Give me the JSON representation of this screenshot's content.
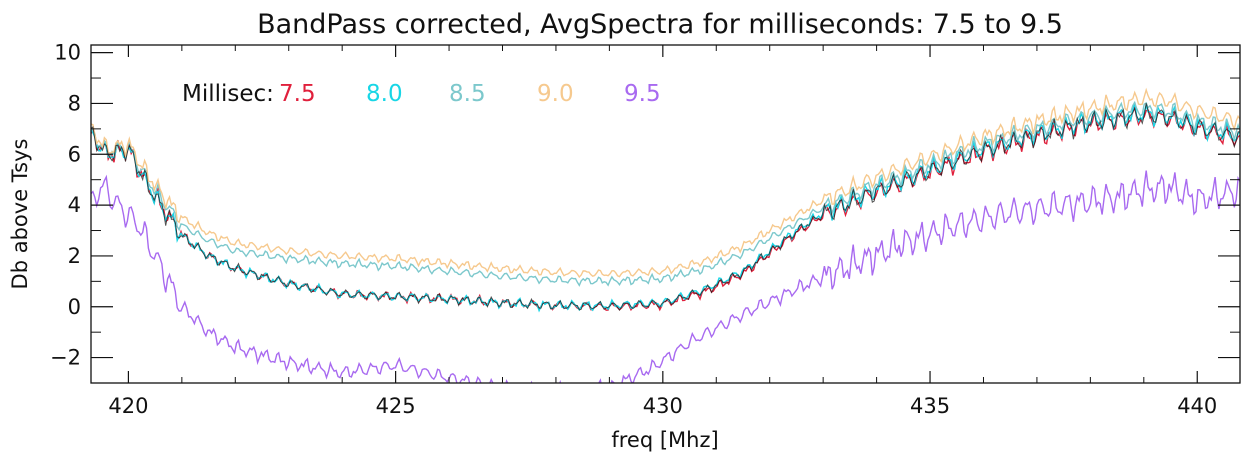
{
  "chart_data": {
    "type": "line",
    "title": "BandPass corrected, AvgSpectra for milliseconds:  7.5 to  9.5",
    "xlabel": "freq [Mhz]",
    "ylabel": "Db above Tsys",
    "xlim": [
      419.3,
      440.8
    ],
    "ylim": [
      -3.0,
      10.3
    ],
    "x_ticks": [
      420,
      425,
      430,
      435,
      440
    ],
    "x_tick_labels": [
      "420",
      "425",
      "430",
      "435",
      "440"
    ],
    "y_ticks": [
      -2,
      0,
      2,
      4,
      6,
      8,
      10
    ],
    "y_tick_labels": [
      "−2",
      "0",
      "2",
      "4",
      "6",
      "8",
      "10"
    ],
    "grid": false,
    "legend": {
      "title": "Millisec:",
      "placement": "top-left",
      "entries": [
        "7.5",
        "8.0",
        "8.5",
        "9.0",
        "9.5"
      ]
    },
    "colors": {
      "7.5": "#e0203c",
      "8.0": "#18d6e6",
      "8.5": "#7cc8cc",
      "9.0": "#f6c98e",
      "9.5": "#a86af0",
      "base": "#1a1a1a"
    },
    "series": [
      {
        "name": "7.5",
        "ripple": 0.45,
        "x": [
          419.3,
          419.6,
          420.0,
          420.3,
          420.6,
          421.0,
          421.5,
          422.0,
          423.0,
          424.0,
          425.0,
          426.0,
          427.0,
          428.0,
          429.0,
          430.0,
          430.8,
          431.5,
          432.0,
          432.5,
          433.0,
          434.0,
          435.0,
          436.0,
          437.0,
          438.0,
          439.0,
          439.5,
          440.0,
          440.8
        ],
        "y": [
          6.8,
          6.0,
          6.2,
          5.0,
          4.0,
          2.8,
          2.0,
          1.5,
          0.9,
          0.5,
          0.4,
          0.3,
          0.15,
          0.05,
          0.0,
          0.1,
          0.6,
          1.3,
          2.1,
          2.9,
          3.6,
          4.5,
          5.3,
          6.1,
          6.7,
          7.2,
          7.5,
          7.4,
          7.0,
          6.6
        ]
      },
      {
        "name": "8.0",
        "ripple": 0.45,
        "x": [
          419.3,
          419.6,
          420.0,
          420.3,
          420.6,
          421.0,
          421.5,
          422.0,
          423.0,
          424.0,
          425.0,
          426.0,
          427.0,
          428.0,
          429.0,
          430.0,
          430.8,
          431.5,
          432.0,
          432.5,
          433.0,
          434.0,
          435.0,
          436.0,
          437.0,
          438.0,
          439.0,
          439.5,
          440.0,
          440.8
        ],
        "y": [
          6.8,
          6.0,
          6.2,
          5.0,
          4.0,
          2.8,
          2.0,
          1.5,
          0.9,
          0.5,
          0.4,
          0.3,
          0.15,
          0.05,
          0.05,
          0.15,
          0.7,
          1.4,
          2.2,
          3.0,
          3.7,
          4.6,
          5.4,
          6.2,
          6.8,
          7.3,
          7.6,
          7.5,
          7.1,
          6.7
        ]
      },
      {
        "name": "8.5",
        "ripple": 0.4,
        "x": [
          419.3,
          419.6,
          420.0,
          420.3,
          420.6,
          421.0,
          421.5,
          422.0,
          423.0,
          424.0,
          425.0,
          426.0,
          427.0,
          428.0,
          429.0,
          430.0,
          430.8,
          431.5,
          432.0,
          432.5,
          433.0,
          434.0,
          435.0,
          436.0,
          437.0,
          438.0,
          439.0,
          439.5,
          440.0,
          440.8
        ],
        "y": [
          6.9,
          6.1,
          6.3,
          5.2,
          4.3,
          3.2,
          2.6,
          2.2,
          1.9,
          1.7,
          1.6,
          1.4,
          1.2,
          1.05,
          1.0,
          1.1,
          1.5,
          2.1,
          2.7,
          3.3,
          3.9,
          4.8,
          5.6,
          6.4,
          7.0,
          7.5,
          7.8,
          7.7,
          7.3,
          6.9
        ]
      },
      {
        "name": "9.0",
        "ripple": 0.4,
        "x": [
          419.3,
          419.6,
          420.0,
          420.3,
          420.6,
          421.0,
          421.5,
          422.0,
          423.0,
          424.0,
          425.0,
          426.0,
          427.0,
          428.0,
          429.0,
          430.0,
          430.8,
          431.5,
          432.0,
          432.5,
          433.0,
          434.0,
          435.0,
          436.0,
          437.0,
          438.0,
          439.0,
          439.5,
          440.0,
          440.8
        ],
        "y": [
          7.0,
          6.2,
          6.4,
          5.4,
          4.5,
          3.5,
          2.9,
          2.5,
          2.2,
          2.0,
          1.9,
          1.7,
          1.5,
          1.35,
          1.3,
          1.4,
          1.8,
          2.4,
          3.0,
          3.6,
          4.2,
          5.1,
          5.9,
          6.7,
          7.3,
          7.8,
          8.2,
          8.1,
          7.7,
          7.3
        ]
      },
      {
        "name": "9.5",
        "ripple": 0.7,
        "x": [
          419.3,
          419.5,
          419.8,
          420.2,
          420.6,
          421.0,
          421.5,
          422.0,
          423.0,
          424.0,
          425.0,
          426.0,
          427.0,
          428.0,
          429.0,
          429.8,
          430.5,
          431.5,
          432.5,
          433.5,
          434.5,
          435.5,
          436.5,
          437.5,
          438.5,
          439.0,
          439.5,
          440.0,
          440.8
        ],
        "y": [
          4.0,
          4.8,
          4.0,
          3.2,
          1.6,
          0.0,
          -1.0,
          -1.6,
          -2.2,
          -2.6,
          -2.3,
          -2.8,
          -3.2,
          -3.3,
          -3.2,
          -2.4,
          -1.4,
          -0.3,
          0.7,
          1.6,
          2.5,
          3.2,
          3.7,
          4.0,
          4.3,
          4.6,
          4.7,
          4.2,
          4.6
        ]
      }
    ]
  }
}
